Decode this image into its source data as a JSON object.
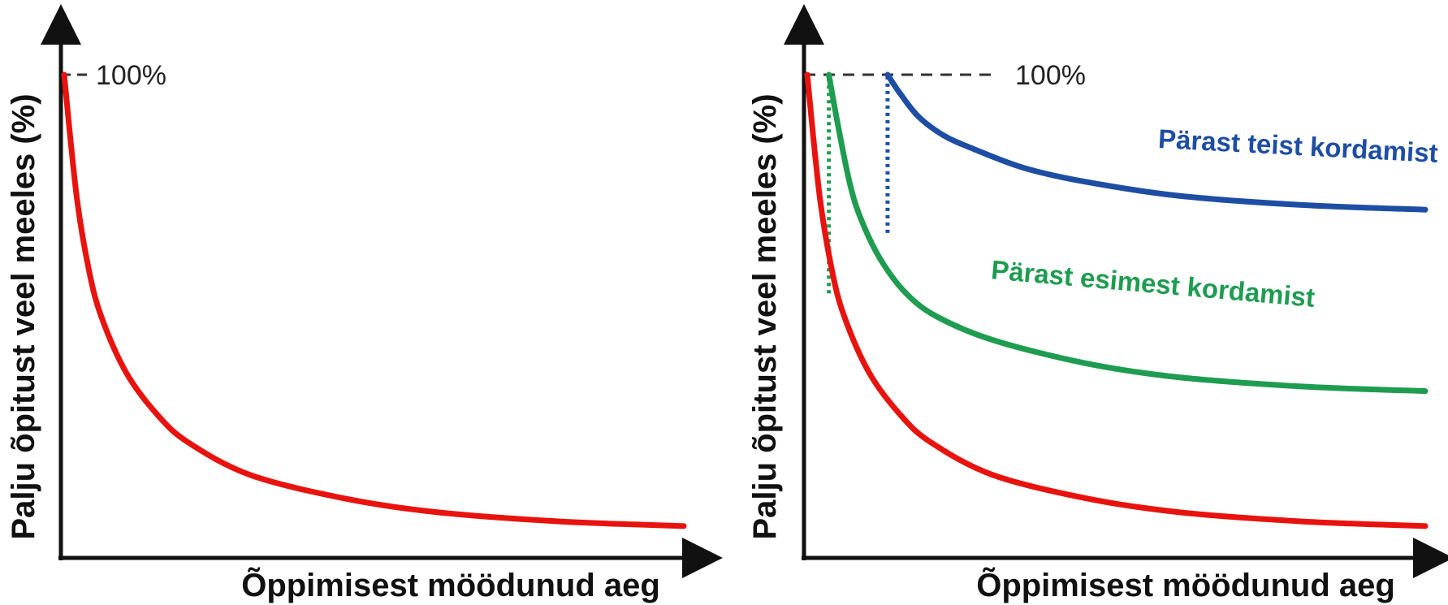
{
  "chart_data": [
    {
      "type": "line",
      "title": "",
      "xlabel": "Õppimisest möödunud aeg",
      "ylabel": "Palju õpitust veel meeles (%)",
      "ylim": [
        0,
        100
      ],
      "xlim": [
        0,
        100
      ],
      "annotations": [
        {
          "text": "100%",
          "y": 100
        }
      ],
      "series": [
        {
          "color": "#e8130e",
          "x": [
            0,
            2,
            4,
            6,
            10,
            15,
            20,
            30,
            45,
            60,
            80,
            100
          ],
          "y": [
            100,
            74,
            58,
            48,
            36,
            27,
            21,
            14,
            9,
            6,
            4,
            3
          ]
        }
      ]
    },
    {
      "type": "line",
      "title": "",
      "xlabel": "Õppimisest möödunud aeg",
      "ylabel": "Palju õpitust veel meeles (%)",
      "ylim": [
        0,
        100
      ],
      "xlim": [
        0,
        100
      ],
      "annotations": [
        {
          "text": "100%",
          "y": 100
        }
      ],
      "series": [
        {
          "color": "#e8130e",
          "x": [
            0,
            2,
            4,
            6,
            10,
            15,
            20,
            30,
            45,
            60,
            80,
            100
          ],
          "y": [
            100,
            74,
            58,
            48,
            36,
            27,
            21,
            14,
            9,
            6,
            4,
            3
          ]
        },
        {
          "name": "Pärast esimest kordamist",
          "color": "#1e9c50",
          "x": [
            3.5,
            5,
            7,
            9,
            12,
            16,
            21,
            30,
            45,
            60,
            80,
            100
          ],
          "y": [
            100,
            89,
            76,
            68,
            60,
            53,
            48,
            43,
            38,
            35,
            33,
            32
          ]
        },
        {
          "name": "Pärast teist kordamist",
          "color": "#1e4ea3",
          "x": [
            13,
            15,
            18,
            22,
            27,
            35,
            45,
            60,
            80,
            100
          ],
          "y": [
            100,
            96,
            91,
            87,
            84,
            80,
            77,
            74,
            72,
            71
          ]
        }
      ],
      "vertical_markers": [
        {
          "color": "#1e9c50",
          "x": 3.5,
          "y_from": 53,
          "y_to": 100
        },
        {
          "color": "#1e4ea3",
          "x": 13,
          "y_from": 66,
          "y_to": 100
        }
      ]
    }
  ]
}
